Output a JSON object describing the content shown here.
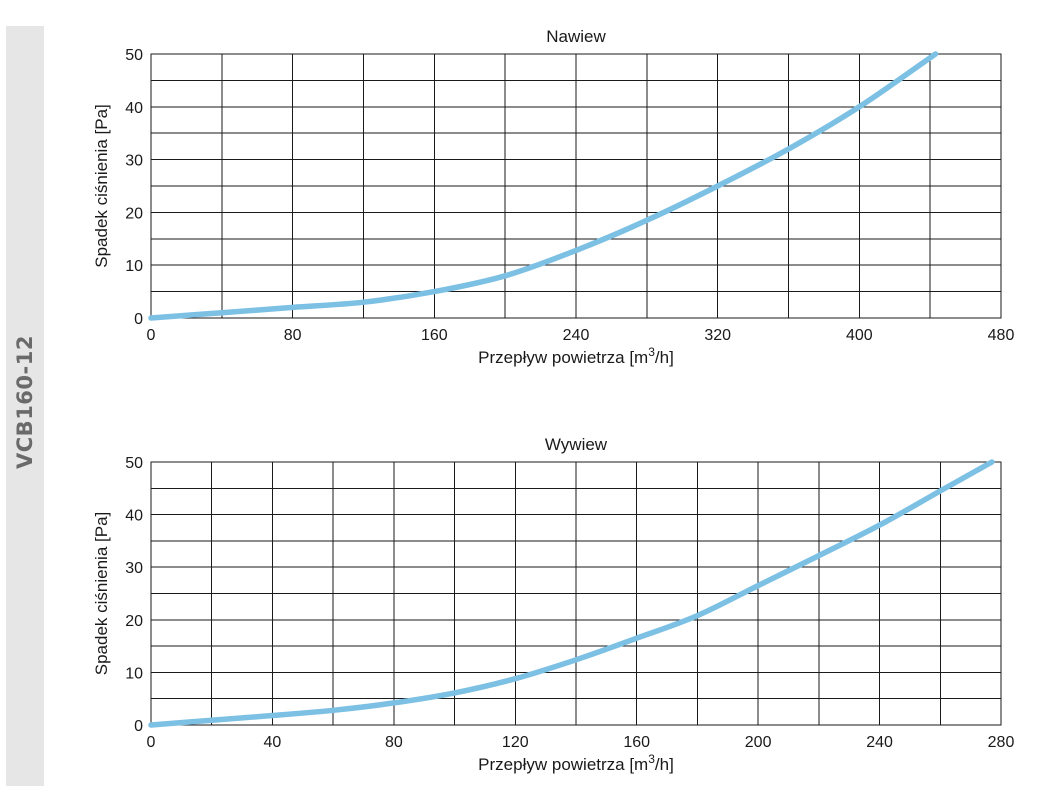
{
  "side_label": "VCB160-12",
  "colors": {
    "curve": "#7cc0e4",
    "grid": "#1a1a1a",
    "side_band": "#e6e6e6",
    "side_text": "#6a6a6a"
  },
  "chart_data": [
    {
      "type": "line",
      "title": "Nawiew",
      "xlabel": "Przepływ powietrza [m3/h]",
      "xlabel_parts": [
        "Przepływ powietrza [m",
        "3",
        "/h]"
      ],
      "ylabel": "Spadek ciśnienia [Pa]",
      "xlim": [
        0,
        480
      ],
      "ylim": [
        0,
        50
      ],
      "x_ticks": [
        0,
        80,
        160,
        240,
        320,
        400,
        480
      ],
      "y_ticks": [
        0,
        10,
        20,
        30,
        40,
        50
      ],
      "x_grid_step": 40,
      "y_grid_step": 5,
      "series": [
        {
          "name": "Nawiew",
          "x": [
            0,
            40,
            80,
            120,
            160,
            200,
            240,
            280,
            320,
            360,
            400,
            443
          ],
          "y": [
            0,
            1,
            2,
            3,
            5,
            8,
            12.8,
            18.5,
            25,
            32,
            40,
            50
          ]
        }
      ]
    },
    {
      "type": "line",
      "title": "Wywiew",
      "xlabel": "Przepływ powietrza [m3/h]",
      "xlabel_parts": [
        "Przepływ powietrza [m",
        "3",
        "/h]"
      ],
      "ylabel": "Spadek ciśnienia [Pa]",
      "xlim": [
        0,
        280
      ],
      "ylim": [
        0,
        50
      ],
      "x_ticks": [
        0,
        40,
        80,
        120,
        160,
        200,
        240,
        280
      ],
      "y_ticks": [
        0,
        10,
        20,
        30,
        40,
        50
      ],
      "x_grid_step": 20,
      "y_grid_step": 5,
      "series": [
        {
          "name": "Wywiew",
          "x": [
            0,
            20,
            40,
            60,
            80,
            100,
            120,
            140,
            160,
            180,
            200,
            220,
            240,
            260,
            277
          ],
          "y": [
            0,
            0.9,
            1.8,
            2.8,
            4.2,
            6.1,
            8.8,
            12.4,
            16.5,
            20.8,
            26.5,
            32.2,
            38,
            44.5,
            50
          ]
        }
      ]
    }
  ]
}
